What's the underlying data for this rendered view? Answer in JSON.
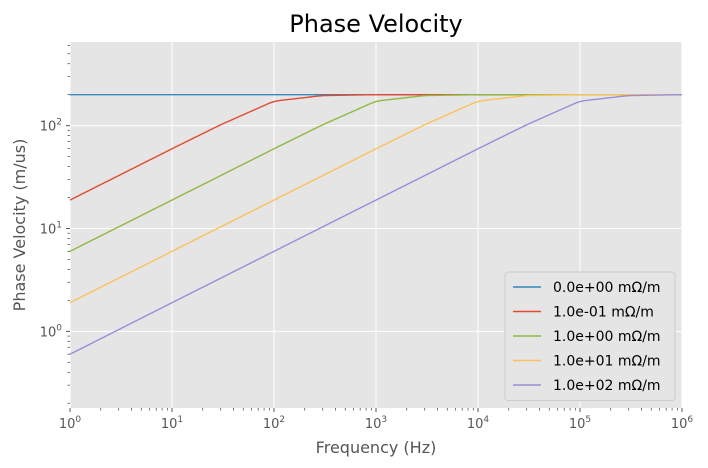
{
  "chart_data": {
    "type": "line",
    "title": "Phase Velocity",
    "xlabel": "Frequency (Hz)",
    "ylabel": "Phase Velocity (m/us)",
    "xscale": "log",
    "yscale": "log",
    "xlim": [
      1,
      1000000
    ],
    "ylim": [
      0.18,
      650
    ],
    "grid": true,
    "legend_position": "bottom-right",
    "background": "#e5e5e5",
    "x_ticks": [
      "10^0",
      "10^1",
      "10^2",
      "10^3",
      "10^4",
      "10^5",
      "10^6"
    ],
    "y_ticks": [
      "10^0",
      "10^1",
      "10^2"
    ],
    "series": [
      {
        "name": "0.0e+00 mΩ/m",
        "color": "#348abd",
        "x": [
          1,
          10,
          100,
          1000,
          10000,
          100000,
          1000000
        ],
        "y": [
          200,
          200,
          200,
          200,
          200,
          200,
          200
        ]
      },
      {
        "name": "1.0e-01 mΩ/m",
        "color": "#e24a33",
        "x": [
          1,
          10,
          30,
          100,
          300,
          1000,
          10000,
          1000000
        ],
        "y": [
          18.9,
          59.6,
          102,
          173,
          196,
          200,
          200,
          200
        ]
      },
      {
        "name": "1.0e+00 mΩ/m",
        "color": "#8eba42",
        "x": [
          1,
          10,
          100,
          300,
          1000,
          3000,
          10000,
          1000000
        ],
        "y": [
          6.0,
          18.9,
          59.6,
          102,
          173,
          196,
          200,
          200
        ]
      },
      {
        "name": "1.0e+01 mΩ/m",
        "color": "#fbc15e",
        "x": [
          1,
          10,
          100,
          1000,
          3000,
          10000,
          30000,
          100000,
          1000000
        ],
        "y": [
          1.9,
          6.0,
          18.9,
          59.6,
          102,
          173,
          196,
          200,
          200
        ]
      },
      {
        "name": "1.0e+02 mΩ/m",
        "color": "#988ed5",
        "x": [
          1,
          10,
          100,
          1000,
          10000,
          30000,
          100000,
          300000,
          1000000
        ],
        "y": [
          0.6,
          1.9,
          6.0,
          18.9,
          59.6,
          102,
          173,
          196,
          200
        ]
      }
    ]
  }
}
